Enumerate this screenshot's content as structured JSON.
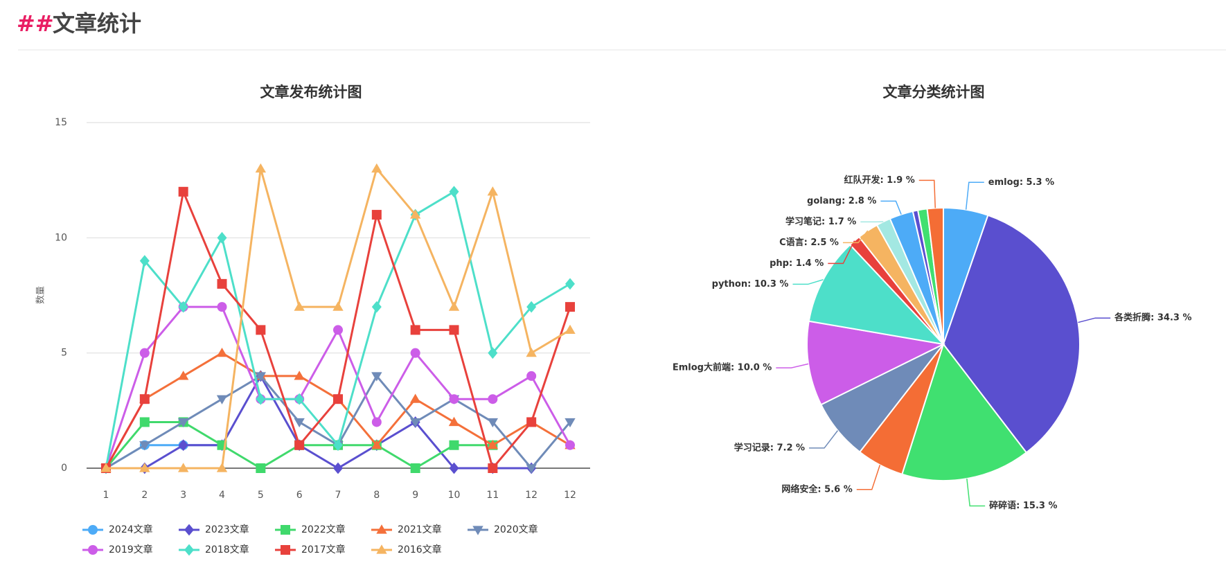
{
  "header": {
    "marker": "##",
    "title": "文章统计"
  },
  "chart_data": [
    {
      "type": "line",
      "title": "文章发布统计图",
      "y_label": "数量",
      "categories": [
        "1",
        "2",
        "3",
        "4",
        "5",
        "6",
        "7",
        "8",
        "9",
        "10",
        "11",
        "12",
        "12"
      ],
      "ylim": [
        0,
        15
      ],
      "yticks": [
        0,
        5,
        10,
        15
      ],
      "grid": true,
      "series": [
        {
          "name": "2024文章",
          "color": "#4dabf7",
          "marker": "circle",
          "values": [
            0,
            1,
            1,
            1,
            null,
            null,
            null,
            null,
            null,
            null,
            null,
            null,
            null
          ]
        },
        {
          "name": "2023文章",
          "color": "#5a4fcf",
          "marker": "diamond",
          "values": [
            0,
            0,
            1,
            1,
            4,
            1,
            0,
            1,
            2,
            0,
            0,
            0,
            null
          ]
        },
        {
          "name": "2022文章",
          "color": "#40d96c",
          "marker": "square",
          "values": [
            0,
            2,
            2,
            1,
            0,
            1,
            1,
            1,
            0,
            1,
            1,
            null,
            null
          ]
        },
        {
          "name": "2021文章",
          "color": "#f4703a",
          "marker": "triangle",
          "values": [
            0,
            3,
            4,
            5,
            4,
            4,
            3,
            1,
            3,
            2,
            1,
            2,
            1
          ]
        },
        {
          "name": "2020文章",
          "color": "#6f8bb8",
          "marker": "triangle-down",
          "values": [
            0,
            1,
            2,
            3,
            4,
            2,
            1,
            4,
            2,
            3,
            2,
            0,
            2
          ]
        },
        {
          "name": "2019文章",
          "color": "#cc5de8",
          "marker": "circle",
          "values": [
            0,
            5,
            7,
            7,
            3,
            3,
            6,
            2,
            5,
            3,
            3,
            4,
            1
          ]
        },
        {
          "name": "2018文章",
          "color": "#4ddfc9",
          "marker": "diamond",
          "values": [
            0,
            9,
            7,
            10,
            3,
            3,
            1,
            7,
            11,
            12,
            5,
            7,
            8
          ]
        },
        {
          "name": "2017文章",
          "color": "#e8413c",
          "marker": "square",
          "values": [
            0,
            3,
            12,
            8,
            6,
            1,
            3,
            11,
            6,
            6,
            0,
            2,
            7
          ]
        },
        {
          "name": "2016文章",
          "color": "#f5b461",
          "marker": "triangle",
          "values": [
            0,
            0,
            0,
            0,
            13,
            7,
            7,
            13,
            11,
            7,
            12,
            5,
            6
          ]
        }
      ]
    },
    {
      "type": "pie",
      "title": "文章分类统计图",
      "values": [
        5.3,
        34.3,
        15.3,
        5.6,
        7.2,
        10.0,
        10.3,
        1.4,
        2.5,
        1.7,
        2.8,
        0.6,
        1.1,
        1.9
      ],
      "value_labels": [
        "emlog: 5.3 %",
        "各类折腾: 34.3 %",
        "碎碎语: 15.3 %",
        "网络安全: 5.6 %",
        "学习记录: 7.2 %",
        "Emlog大前端: 10.0 %",
        "python: 10.3 %",
        "php: 1.4 %",
        "C语言: 2.5 %",
        "学习笔记: 1.7 %",
        "golang: 2.8 %",
        null,
        null,
        "红队开发: 1.9 %"
      ],
      "colors": [
        "#4dabf7",
        "#5a4fcf",
        "#40e070",
        "#f46d35",
        "#6f8bb8",
        "#cc5de8",
        "#4ddfc9",
        "#e8413c",
        "#f5b461",
        "#a3e8e2",
        "#4dabf7",
        "#5a4fcf",
        "#40e070",
        "#f46d35"
      ]
    }
  ]
}
